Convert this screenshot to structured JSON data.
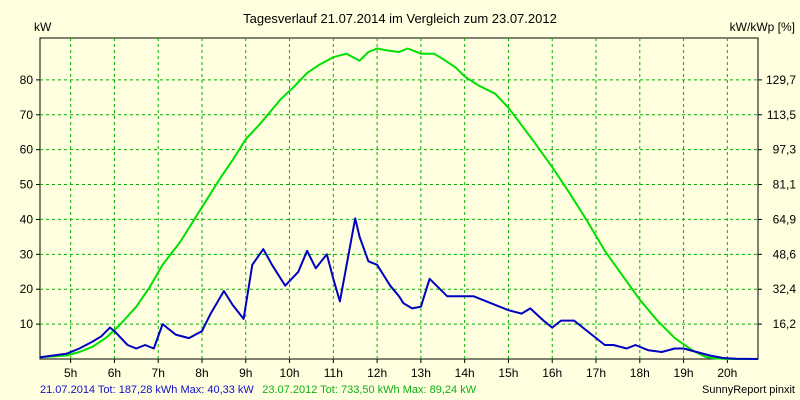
{
  "chart_data": {
    "type": "line",
    "title": "Tagesverlauf 21.07.2014 im Vergleich zum 23.07.2012",
    "ylabel_left": "kW",
    "ylabel_right": "kW/kWp [%]",
    "xlim": [
      4.3,
      20.7
    ],
    "ylim": [
      0,
      92
    ],
    "grid": true,
    "x_ticks": [
      5,
      6,
      7,
      8,
      9,
      10,
      11,
      12,
      13,
      14,
      15,
      16,
      17,
      18,
      19,
      20
    ],
    "x_tick_labels": [
      "5h",
      "6h",
      "7h",
      "8h",
      "9h",
      "10h",
      "11h",
      "12h",
      "13h",
      "14h",
      "15h",
      "16h",
      "17h",
      "18h",
      "19h",
      "20h"
    ],
    "y_ticks_left": [
      10,
      20,
      30,
      40,
      50,
      60,
      70,
      80
    ],
    "y_tick_labels_left": [
      "10",
      "20",
      "30",
      "40",
      "50",
      "60",
      "70",
      "80"
    ],
    "y_tick_labels_right": [
      "16,2",
      "32,4",
      "48,6",
      "64,9",
      "81,1",
      "97,3",
      "113,5",
      "129,7"
    ],
    "series": [
      {
        "color": "#0000c0",
        "x": [
          4.3,
          4.9,
          5.2,
          5.5,
          5.7,
          5.9,
          6.0,
          6.3,
          6.5,
          6.7,
          6.9,
          7.1,
          7.4,
          7.7,
          8.0,
          8.2,
          8.5,
          8.7,
          8.95,
          9.15,
          9.4,
          9.6,
          9.9,
          10.2,
          10.4,
          10.6,
          10.85,
          11.0,
          11.15,
          11.5,
          11.6,
          11.8,
          12.0,
          12.3,
          12.5,
          12.6,
          12.8,
          13.0,
          13.2,
          13.6,
          13.8,
          14.2,
          14.6,
          14.8,
          15.0,
          15.3,
          15.5,
          15.8,
          16.0,
          16.2,
          16.5,
          16.8,
          17.2,
          17.4,
          17.7,
          17.9,
          18.2,
          18.5,
          18.8,
          19.0,
          19.3,
          19.6,
          19.9,
          20.2,
          20.7
        ],
        "values": [
          0.5,
          1.5,
          3,
          5,
          6.5,
          9,
          8,
          4,
          3,
          4,
          3,
          10,
          7,
          6,
          8,
          13,
          19.5,
          15.5,
          11.5,
          27,
          31.5,
          27,
          21,
          25,
          31,
          26,
          30,
          23,
          16.5,
          40.3,
          35,
          28,
          27,
          21,
          18,
          16,
          14.5,
          15,
          23,
          18,
          18,
          18,
          16,
          15,
          14,
          13,
          14.5,
          11,
          9,
          11,
          11,
          8,
          4,
          4,
          3,
          4,
          2.5,
          2,
          3,
          3,
          2,
          1,
          0.3,
          0.1,
          0
        ],
        "legend": "21.07.2014 Tot: 187,28 kWh Max: 40,33 kW"
      },
      {
        "color": "#00e000",
        "x": [
          4.3,
          4.9,
          5.2,
          5.5,
          5.8,
          6.1,
          6.5,
          6.8,
          7.1,
          7.5,
          7.8,
          8.1,
          8.4,
          8.7,
          9.0,
          9.3,
          9.5,
          9.8,
          10.1,
          10.4,
          10.7,
          11.0,
          11.3,
          11.6,
          11.8,
          12.0,
          12.2,
          12.5,
          12.7,
          13.0,
          13.3,
          13.5,
          13.8,
          14.0,
          14.3,
          14.7,
          15.0,
          15.3,
          15.6,
          16.0,
          16.4,
          16.8,
          17.2,
          17.6,
          18.0,
          18.4,
          18.8,
          19.2,
          19.5,
          19.7,
          20.0,
          20.7
        ],
        "values": [
          0.5,
          1,
          2,
          3.5,
          6,
          9.5,
          15,
          20.5,
          27,
          33.5,
          39.5,
          45.5,
          51.5,
          57,
          63,
          67,
          70,
          74.5,
          78,
          82,
          84.5,
          86.5,
          87.5,
          85.5,
          88,
          89,
          88.5,
          88,
          89,
          87.5,
          87.5,
          86,
          83.5,
          81,
          78.5,
          76,
          72,
          67,
          62,
          55,
          47.5,
          39.5,
          31,
          24,
          17,
          11,
          6,
          2.5,
          0.6,
          0.2,
          0,
          0
        ],
        "legend": "23.07.2012 Tot: 733,50 kWh Max: 89,24 kW"
      }
    ],
    "credit": "SunnyReport pinxit"
  }
}
